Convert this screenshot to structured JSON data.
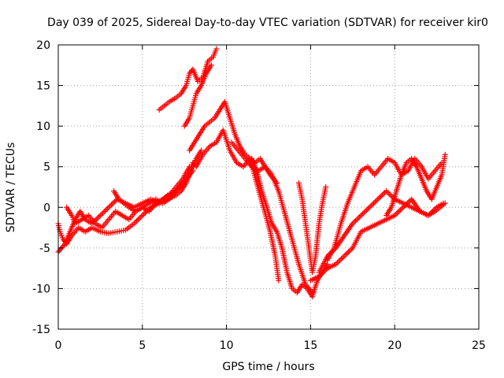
{
  "chart_data": {
    "type": "scatter",
    "title": "Day 039 of 2025, Sidereal Day-to-day VTEC variation (SDTVAR) for receiver kir0",
    "xlabel": "GPS time / hours",
    "ylabel": "SDTVAR / TECUs",
    "xlim": [
      0,
      25
    ],
    "ylim": [
      -15,
      20
    ],
    "xticks": [
      "0",
      "5",
      "10",
      "15",
      "20",
      "25"
    ],
    "yticks": [
      "-15",
      "-10",
      "-5",
      "0",
      "5",
      "10",
      "15",
      "20"
    ],
    "grid": true,
    "marker": "+",
    "color": "#ff0000",
    "series": [
      {
        "x": [
          0.0,
          0.1,
          0.3,
          0.5,
          0.8,
          1.2,
          1.6,
          2.0,
          2.5,
          3.0,
          3.5,
          4.0,
          4.5,
          5.0,
          5.5,
          6.0,
          6.5,
          7.0,
          7.3,
          7.6,
          7.9,
          8.2,
          8.5
        ],
        "y": [
          -2.0,
          -3.0,
          -4.0,
          -4.5,
          -3.5,
          -2.5,
          -3.0,
          -2.5,
          -3.0,
          -3.2,
          -3.0,
          -2.8,
          -2.0,
          -1.0,
          0.0,
          0.5,
          1.0,
          1.5,
          2.0,
          3.0,
          4.5,
          6.0,
          7.0
        ]
      },
      {
        "x": [
          0.0,
          0.2,
          0.4,
          0.7,
          1.0,
          1.3,
          1.6,
          2.0,
          2.5,
          3.0,
          3.5,
          4.0,
          4.5,
          5.0,
          5.5,
          6.0,
          6.5,
          7.0,
          7.5,
          7.8,
          8.0
        ],
        "y": [
          -5.5,
          -5.0,
          -4.5,
          -3.0,
          -1.5,
          -0.5,
          -1.5,
          -2.0,
          -1.0,
          0.0,
          1.0,
          0.5,
          0.0,
          0.5,
          1.0,
          0.5,
          1.5,
          2.0,
          3.0,
          4.0,
          5.5
        ]
      },
      {
        "x": [
          0.5,
          0.8,
          1.0,
          1.4,
          1.8,
          2.2,
          2.6,
          3.0,
          3.4,
          3.8,
          4.2,
          4.6,
          5.0,
          5.4,
          5.8,
          6.2,
          6.6,
          7.0,
          7.4,
          7.8
        ],
        "y": [
          0.0,
          -1.0,
          -2.0,
          -1.5,
          -1.0,
          -2.0,
          -2.5,
          -1.5,
          -0.5,
          -1.0,
          -1.5,
          -0.5,
          0.0,
          -0.5,
          0.5,
          1.0,
          1.5,
          2.5,
          3.5,
          5.0
        ]
      },
      {
        "x": [
          3.3,
          3.6,
          3.9,
          4.2,
          4.6,
          5.0,
          5.4,
          5.8,
          6.2,
          6.6,
          7.0,
          7.4,
          7.8,
          8.0
        ],
        "y": [
          2.0,
          1.0,
          0.5,
          0.0,
          -0.5,
          0.0,
          0.5,
          1.0,
          0.5,
          1.0,
          2.0,
          3.0,
          4.0,
          4.5
        ]
      },
      {
        "x": [
          6.0,
          6.3,
          6.6,
          7.0,
          7.3,
          7.6,
          7.8,
          8.0,
          8.3,
          8.6,
          8.9,
          9.2,
          9.4
        ],
        "y": [
          12.0,
          12.5,
          13.0,
          13.5,
          14.0,
          15.0,
          16.5,
          17.0,
          15.5,
          16.0,
          18.0,
          18.5,
          19.5
        ]
      },
      {
        "x": [
          7.5,
          7.8,
          8.0,
          8.2,
          8.5,
          8.8,
          9.1
        ],
        "y": [
          10.0,
          11.0,
          12.5,
          14.0,
          15.0,
          16.5,
          17.5
        ]
      },
      {
        "x": [
          7.8,
          8.1,
          8.4,
          8.7,
          9.0,
          9.3,
          9.6,
          9.9,
          10.2,
          10.5,
          10.8,
          11.1,
          11.4,
          11.7,
          12.0,
          12.3,
          12.6,
          13.0
        ],
        "y": [
          7.0,
          8.0,
          9.0,
          10.0,
          10.5,
          11.0,
          12.0,
          13.0,
          11.0,
          9.0,
          7.5,
          6.5,
          6.0,
          5.5,
          6.0,
          5.0,
          4.0,
          3.0
        ]
      },
      {
        "x": [
          8.2,
          8.6,
          9.0,
          9.4,
          9.8,
          10.2,
          10.6,
          11.0,
          11.4,
          11.8,
          12.2,
          12.6,
          12.9,
          13.1
        ],
        "y": [
          5.0,
          6.5,
          7.5,
          8.0,
          9.5,
          7.0,
          5.5,
          5.0,
          6.0,
          3.0,
          0.0,
          -3.0,
          -6.0,
          -9.0
        ]
      },
      {
        "x": [
          10.3,
          10.7,
          11.1,
          11.5,
          11.9,
          12.3,
          12.7,
          13.1,
          13.5,
          13.9,
          14.3,
          14.7,
          15.1
        ],
        "y": [
          8.0,
          7.0,
          6.0,
          5.0,
          4.5,
          5.0,
          4.0,
          2.0,
          -1.0,
          -4.0,
          -7.0,
          -9.5,
          -10.5
        ]
      },
      {
        "x": [
          11.5,
          11.8,
          12.1,
          12.4,
          12.7,
          13.0,
          13.3,
          13.6,
          13.9,
          14.2,
          14.5,
          14.8,
          15.1,
          15.4,
          15.7,
          16.0
        ],
        "y": [
          6.0,
          4.5,
          2.0,
          0.0,
          -2.0,
          -3.0,
          -5.0,
          -8.0,
          -10.0,
          -10.5,
          -9.5,
          -10.0,
          -11.0,
          -9.0,
          -8.0,
          -7.0
        ]
      },
      {
        "x": [
          14.3,
          14.5,
          14.7,
          14.9,
          15.1,
          15.3,
          15.5,
          15.7,
          15.9
        ],
        "y": [
          3.0,
          1.0,
          -2.0,
          -5.0,
          -8.0,
          -6.0,
          -2.0,
          0.5,
          2.5
        ]
      },
      {
        "x": [
          15.0,
          15.5,
          16.0,
          16.5,
          17.0,
          17.5,
          18.0,
          18.5,
          19.0,
          19.5,
          20.0,
          20.5,
          21.0,
          21.5,
          22.0,
          22.4,
          22.7,
          23.0
        ],
        "y": [
          -9.0,
          -8.5,
          -7.5,
          -7.0,
          -6.0,
          -5.0,
          -3.0,
          -2.5,
          -2.0,
          -1.5,
          -1.0,
          0.0,
          1.0,
          -0.5,
          -1.0,
          -0.5,
          0.0,
          0.5
        ]
      },
      {
        "x": [
          15.5,
          16.0,
          16.5,
          17.0,
          17.5,
          18.0,
          18.5,
          19.0,
          19.5,
          20.0,
          20.5,
          21.0,
          21.5,
          22.0,
          22.5,
          22.9
        ],
        "y": [
          -8.0,
          -6.0,
          -5.0,
          -3.5,
          -2.0,
          -1.0,
          0.0,
          1.0,
          2.0,
          1.0,
          0.5,
          0.0,
          -0.5,
          -1.0,
          0.0,
          0.5
        ]
      },
      {
        "x": [
          16.0,
          16.4,
          16.8,
          17.2,
          17.6,
          18.0,
          18.4,
          18.8,
          19.2,
          19.6,
          20.0,
          20.4,
          20.8,
          21.2,
          21.6,
          22.0,
          22.4,
          22.8
        ],
        "y": [
          -6.5,
          -5.0,
          -2.0,
          0.5,
          2.5,
          4.5,
          5.0,
          4.0,
          5.0,
          6.0,
          5.5,
          4.0,
          4.5,
          6.0,
          5.0,
          3.5,
          4.5,
          5.5
        ]
      },
      {
        "x": [
          19.5,
          19.8,
          20.1,
          20.4,
          20.7,
          21.0,
          21.3,
          21.6,
          21.9,
          22.2,
          22.5,
          22.8,
          23.0
        ],
        "y": [
          -1.0,
          0.0,
          2.0,
          4.0,
          5.5,
          6.0,
          5.0,
          3.5,
          2.0,
          1.0,
          2.5,
          4.0,
          6.5
        ]
      }
    ]
  }
}
